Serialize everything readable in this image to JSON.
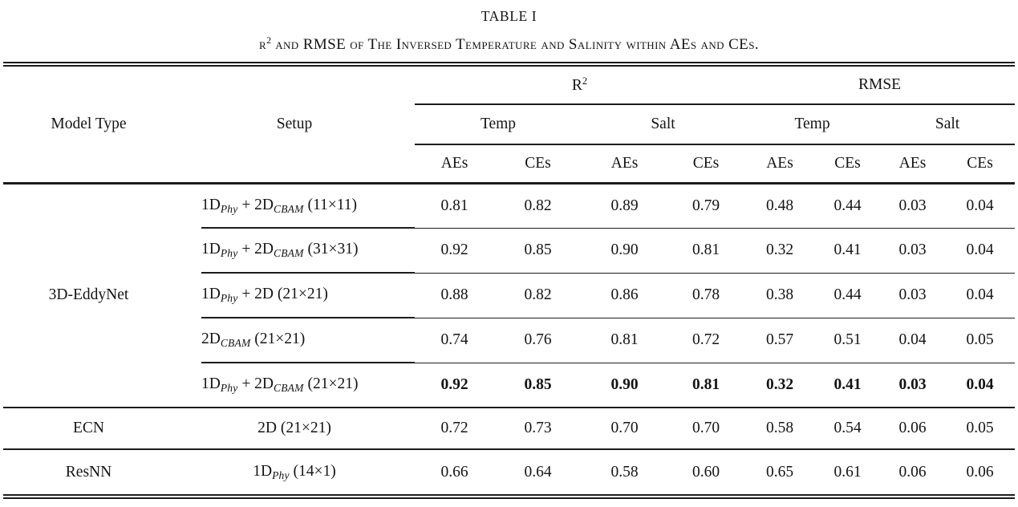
{
  "caption": {
    "label": "TABLE I",
    "subtitle_lead": "r",
    "subtitle_sup": "2",
    "subtitle_rest": " and RMSE of The Inversed Temperature and Salinity within AEs and CEs."
  },
  "header": {
    "model_type": "Model Type",
    "setup": "Setup",
    "r2_base": "R",
    "r2_sup": "2",
    "rmse": "RMSE",
    "temp": "Temp",
    "salt": "Salt",
    "aes": "AEs",
    "ces": "CEs"
  },
  "body": {
    "groups": [
      {
        "model": "3D-EddyNet",
        "rows": [
          {
            "setup": [
              {
                "text": "1D"
              },
              {
                "text": "Phy",
                "sub": true
              },
              {
                "text": " + 2D"
              },
              {
                "text": "CBAM",
                "sub": true
              },
              {
                "text": " (11×11)"
              }
            ],
            "align": "left",
            "bold": false,
            "values": [
              "0.81",
              "0.82",
              "0.89",
              "0.79",
              "0.48",
              "0.44",
              "0.03",
              "0.04"
            ]
          },
          {
            "setup": [
              {
                "text": "1D"
              },
              {
                "text": "Phy",
                "sub": true
              },
              {
                "text": " + 2D"
              },
              {
                "text": "CBAM",
                "sub": true
              },
              {
                "text": " (31×31)"
              }
            ],
            "align": "left",
            "bold": false,
            "values": [
              "0.92",
              "0.85",
              "0.90",
              "0.81",
              "0.32",
              "0.41",
              "0.03",
              "0.04"
            ]
          },
          {
            "setup": [
              {
                "text": "1D"
              },
              {
                "text": "Phy",
                "sub": true
              },
              {
                "text": " + 2D (21×21)"
              }
            ],
            "align": "left",
            "bold": false,
            "values": [
              "0.88",
              "0.82",
              "0.86",
              "0.78",
              "0.38",
              "0.44",
              "0.03",
              "0.04"
            ]
          },
          {
            "setup": [
              {
                "text": "2D"
              },
              {
                "text": "CBAM",
                "sub": true
              },
              {
                "text": " (21×21)"
              }
            ],
            "align": "left",
            "bold": false,
            "values": [
              "0.74",
              "0.76",
              "0.81",
              "0.72",
              "0.57",
              "0.51",
              "0.04",
              "0.05"
            ]
          },
          {
            "setup": [
              {
                "text": "1D"
              },
              {
                "text": "Phy",
                "sub": true
              },
              {
                "text": " + 2D"
              },
              {
                "text": "CBAM",
                "sub": true
              },
              {
                "text": " (21×21)"
              }
            ],
            "align": "left",
            "bold": true,
            "values": [
              "0.92",
              "0.85",
              "0.90",
              "0.81",
              "0.32",
              "0.41",
              "0.03",
              "0.04"
            ]
          }
        ]
      },
      {
        "model": "ECN",
        "rows": [
          {
            "setup": [
              {
                "text": "2D (21×21)"
              }
            ],
            "align": "center",
            "bold": false,
            "values": [
              "0.72",
              "0.73",
              "0.70",
              "0.70",
              "0.58",
              "0.54",
              "0.06",
              "0.05"
            ]
          }
        ]
      },
      {
        "model": "ResNN",
        "rows": [
          {
            "setup": [
              {
                "text": "1D"
              },
              {
                "text": "Phy",
                "sub": true
              },
              {
                "text": " (14×1)"
              }
            ],
            "align": "center",
            "bold": false,
            "values": [
              "0.66",
              "0.64",
              "0.58",
              "0.60",
              "0.65",
              "0.61",
              "0.06",
              "0.06"
            ]
          }
        ]
      }
    ]
  },
  "colors": {
    "text": "#141414",
    "rule": "#1c1c1c",
    "background": "#ffffff"
  }
}
